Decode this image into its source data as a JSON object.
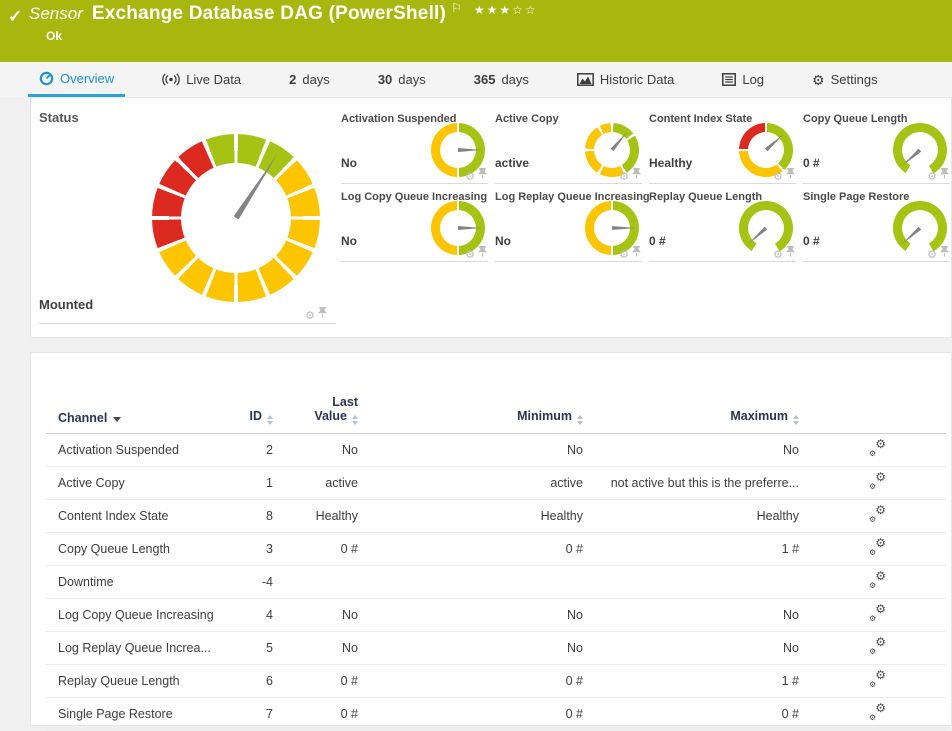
{
  "header": {
    "check": "✓",
    "kind": "Sensor",
    "title": "Exchange Database DAG (PowerShell)",
    "flag": "⚐",
    "stars": "★★★☆☆",
    "status": "Ok"
  },
  "tabs": {
    "overview": "Overview",
    "live_data": "Live Data",
    "d2_num": "2",
    "d2_unit": "days",
    "d30_num": "30",
    "d30_unit": "days",
    "d365_num": "365",
    "d365_unit": "days",
    "historic": "Historic Data",
    "log": "Log",
    "settings": "Settings"
  },
  "icons": {
    "gear": "⚙"
  },
  "colors": {
    "header_green": "#a8b70e",
    "tab_blue": "#2093cc",
    "gauge_green": "#a6c313",
    "gauge_yellow": "#fdc500",
    "gauge_red": "#dc2a20",
    "needle_gray": "#848484"
  },
  "status_tile": {
    "title": "Status",
    "footer": "Mounted",
    "gauge": {
      "gap": 3,
      "needle": 33,
      "segments": [
        [
          0,
          22.5,
          "#a6c313"
        ],
        [
          22.5,
          45,
          "#a6c313"
        ],
        [
          45,
          67.5,
          "#fdc500"
        ],
        [
          67.5,
          90,
          "#fdc500"
        ],
        [
          90,
          112.5,
          "#fdc500"
        ],
        [
          112.5,
          135,
          "#fdc500"
        ],
        [
          135,
          157.5,
          "#fdc500"
        ],
        [
          157.5,
          180,
          "#fdc500"
        ],
        [
          180,
          202.5,
          "#fdc500"
        ],
        [
          202.5,
          225,
          "#fdc500"
        ],
        [
          225,
          247.5,
          "#fdc500"
        ],
        [
          247.5,
          270,
          "#dc2a20"
        ],
        [
          270,
          292.5,
          "#dc2a20"
        ],
        [
          292.5,
          315,
          "#dc2a20"
        ],
        [
          315,
          337.5,
          "#dc2a20"
        ],
        [
          337.5,
          360,
          "#a6c313"
        ]
      ]
    }
  },
  "tiles": [
    {
      "title": "Activation Suspended",
      "value": "No",
      "gauge": {
        "gap": 5,
        "needle": 90,
        "segments": [
          [
            0,
            180,
            "#a6c313"
          ],
          [
            180,
            360,
            "#fdc500"
          ]
        ]
      }
    },
    {
      "title": "Active Copy",
      "value": "active",
      "gauge": {
        "gap": 6,
        "needle": 40,
        "segments": [
          [
            0,
            55,
            "#a6c313"
          ],
          [
            55,
            150,
            "#a6c313"
          ],
          [
            150,
            210,
            "#fdc500"
          ],
          [
            210,
            270,
            "#fdc500"
          ],
          [
            270,
            330,
            "#fdc500"
          ],
          [
            330,
            360,
            "#fdc500"
          ]
        ]
      }
    },
    {
      "title": "Content Index State",
      "value": "Healthy",
      "gauge": {
        "gap": 5,
        "needle": 48,
        "segments": [
          [
            0,
            140,
            "#a6c313"
          ],
          [
            140,
            270,
            "#fdc500"
          ],
          [
            270,
            360,
            "#dc2a20"
          ]
        ]
      }
    },
    {
      "title": "Copy Queue Length",
      "value": "0 #",
      "gauge": {
        "gap": 0,
        "needle": 228,
        "segments": [
          [
            0,
            150,
            "#a6c313"
          ],
          [
            212,
            360,
            "#a6c313"
          ]
        ]
      }
    },
    {
      "title": "Log Copy Queue Increasing",
      "value": "No",
      "gauge": {
        "gap": 5,
        "needle": 90,
        "segments": [
          [
            0,
            180,
            "#a6c313"
          ],
          [
            180,
            360,
            "#fdc500"
          ]
        ]
      }
    },
    {
      "title": "Log Replay Queue Increasing",
      "value": "No",
      "gauge": {
        "gap": 5,
        "needle": 90,
        "segments": [
          [
            0,
            180,
            "#a6c313"
          ],
          [
            180,
            360,
            "#fdc500"
          ]
        ]
      }
    },
    {
      "title": "Replay Queue Length",
      "value": "0 #",
      "gauge": {
        "gap": 0,
        "needle": 228,
        "segments": [
          [
            0,
            150,
            "#a6c313"
          ],
          [
            212,
            360,
            "#a6c313"
          ]
        ]
      }
    },
    {
      "title": "Single Page Restore",
      "value": "0 #",
      "gauge": {
        "gap": 0,
        "needle": 228,
        "segments": [
          [
            0,
            150,
            "#a6c313"
          ],
          [
            212,
            360,
            "#a6c313"
          ]
        ]
      }
    }
  ],
  "table": {
    "columns": {
      "channel": "Channel",
      "id": "ID",
      "last1": "Last",
      "last2": "Value",
      "min": "Minimum",
      "max": "Maximum"
    },
    "rows": [
      {
        "channel": "Activation Suspended",
        "id": "2",
        "last": "No",
        "min": "No",
        "max": "No"
      },
      {
        "channel": "Active Copy",
        "id": "1",
        "last": "active",
        "min": "active",
        "max": "not active but this is the preferre..."
      },
      {
        "channel": "Content Index State",
        "id": "8",
        "last": "Healthy",
        "min": "Healthy",
        "max": "Healthy"
      },
      {
        "channel": "Copy Queue Length",
        "id": "3",
        "last": "0 #",
        "min": "0 #",
        "max": "1 #"
      },
      {
        "channel": "Downtime",
        "id": "-4",
        "last": "",
        "min": "",
        "max": ""
      },
      {
        "channel": "Log Copy Queue Increasing",
        "id": "4",
        "last": "No",
        "min": "No",
        "max": "No"
      },
      {
        "channel": "Log Replay Queue Increa...",
        "id": "5",
        "last": "No",
        "min": "No",
        "max": "No"
      },
      {
        "channel": "Replay Queue Length",
        "id": "6",
        "last": "0 #",
        "min": "0 #",
        "max": "1 #"
      },
      {
        "channel": "Single Page Restore",
        "id": "7",
        "last": "0 #",
        "min": "0 #",
        "max": "0 #"
      }
    ]
  }
}
